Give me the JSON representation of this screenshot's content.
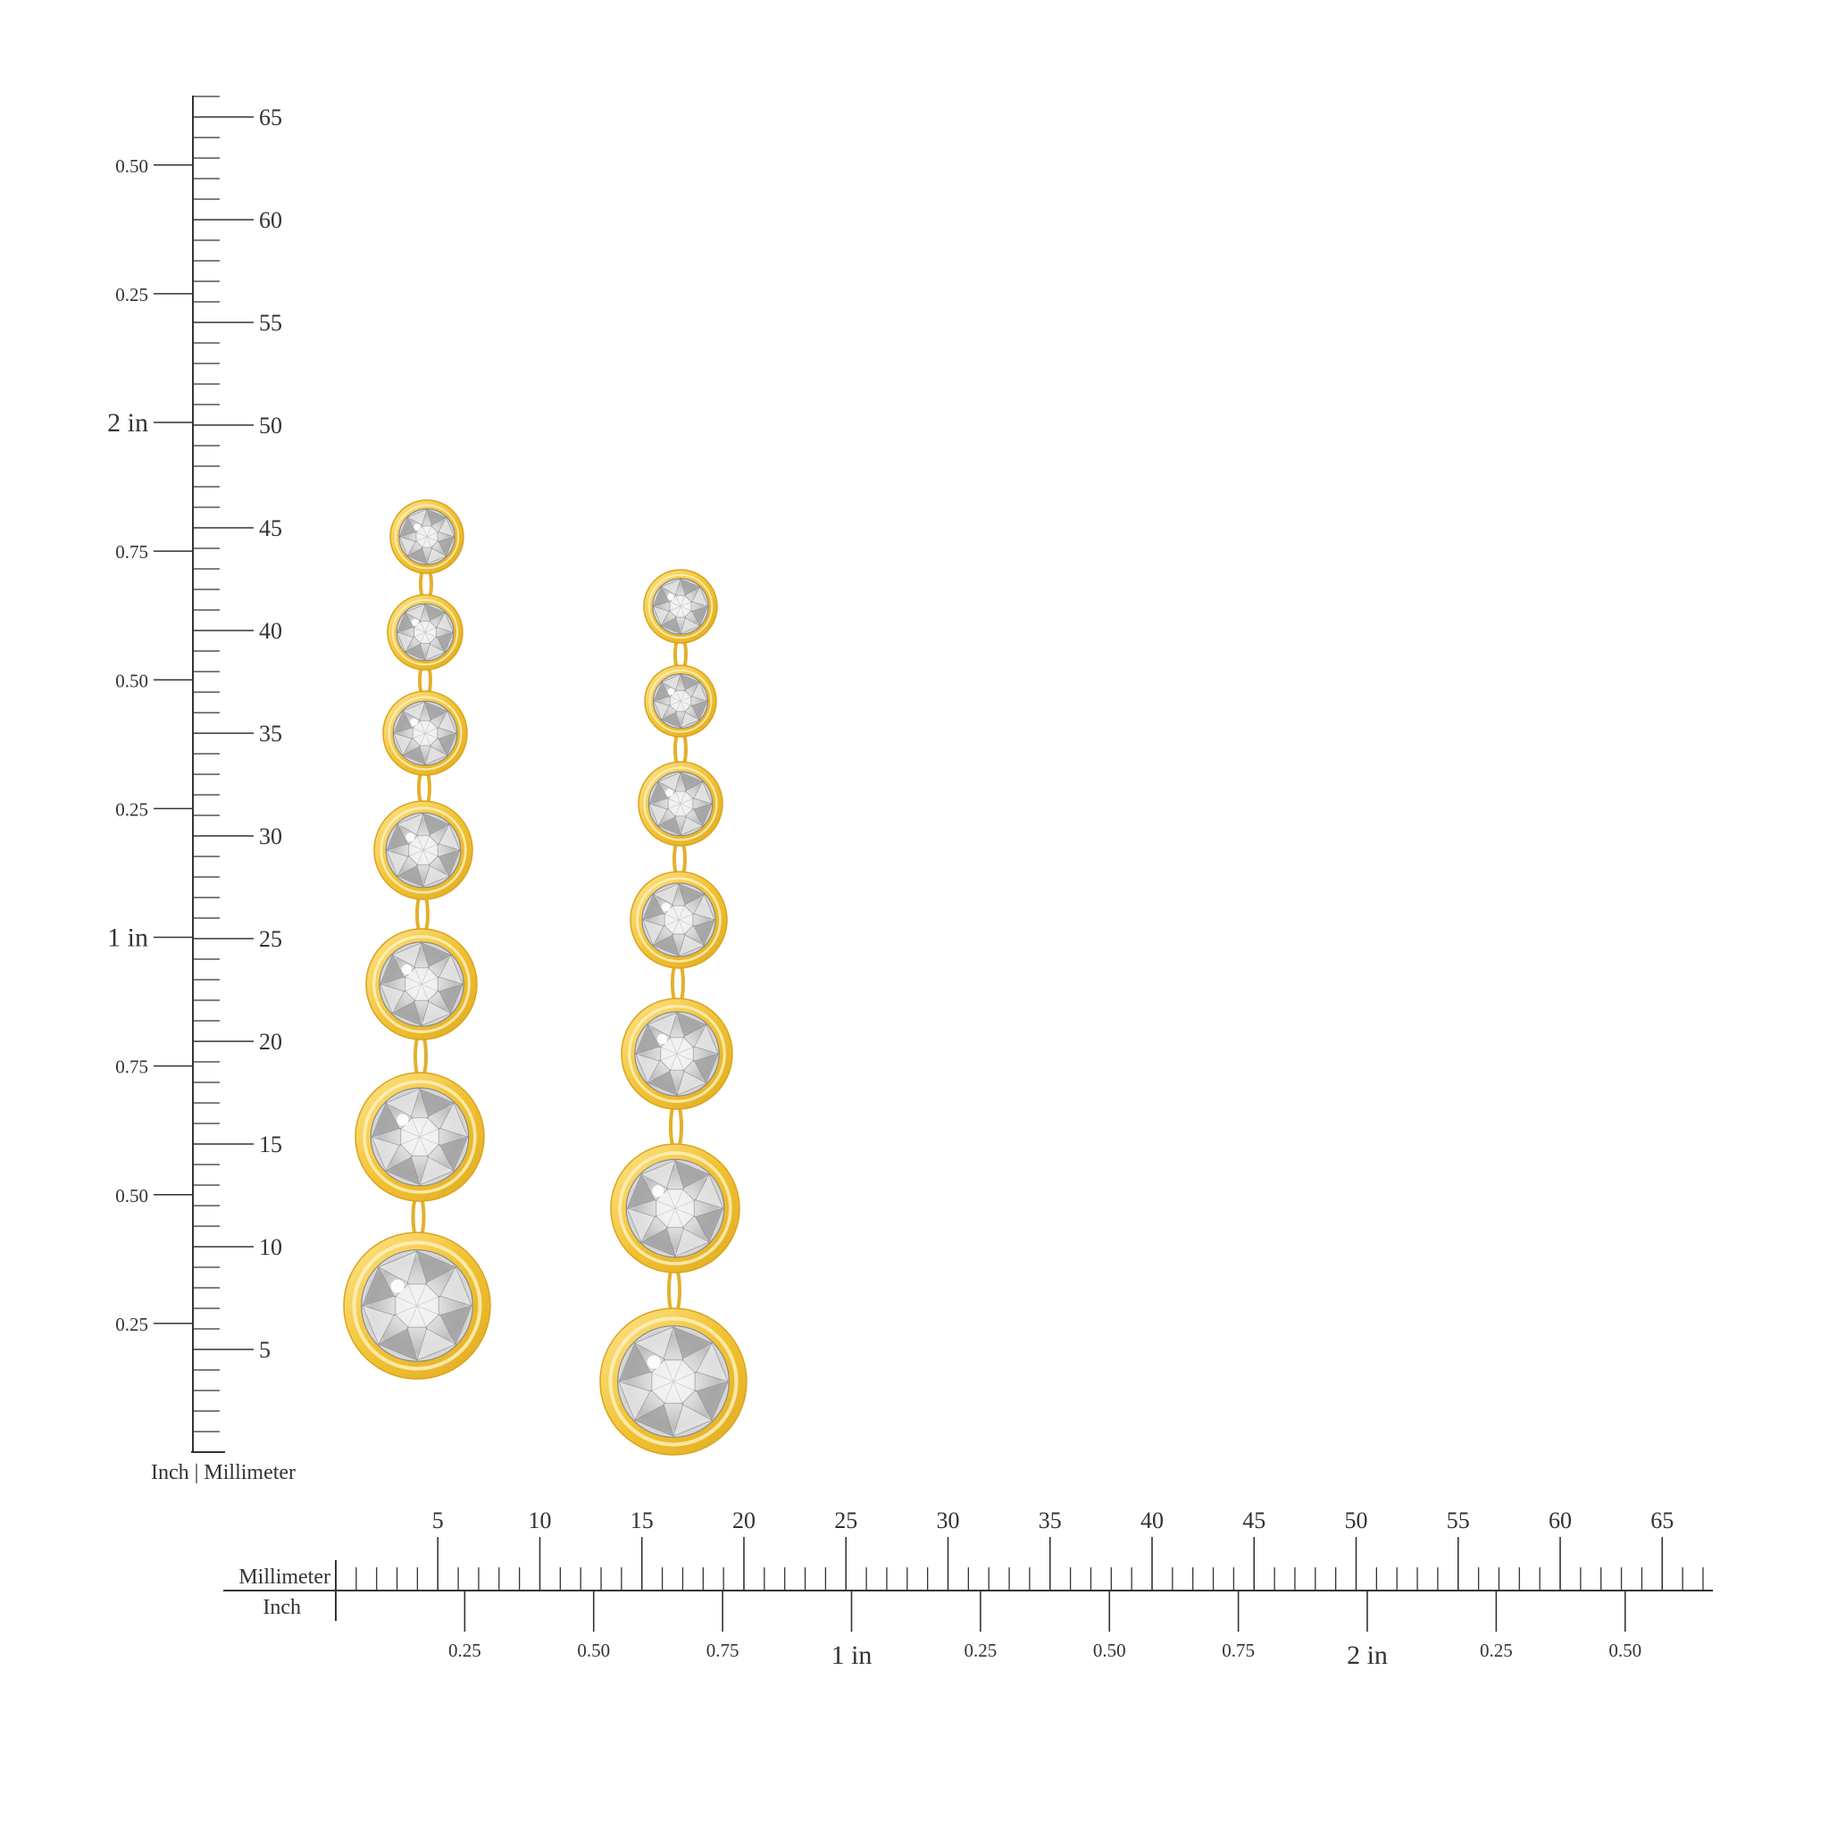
{
  "colors": {
    "ink": "#333333",
    "gold_light": "#fbe28a",
    "gold": "#f2c233",
    "gold_dark": "#d9a41d",
    "stone_light": "#ffffff",
    "stone_mid": "#c8c8c8",
    "stone_dark": "#6f6f6f"
  },
  "vertical_ruler": {
    "inch_labels": [
      "0.25",
      "0.50",
      "0.75",
      "1 in",
      "0.25",
      "0.50",
      "0.75",
      "2 in",
      "0.25",
      "0.50"
    ],
    "mm_labels": [
      "5",
      "10",
      "15",
      "20",
      "25",
      "30",
      "35",
      "40",
      "45",
      "50",
      "55",
      "60",
      "65"
    ],
    "units_caption": "Inch | Millimeter"
  },
  "horizontal_ruler": {
    "mm_labels": [
      "5",
      "10",
      "15",
      "20",
      "25",
      "30",
      "35",
      "40",
      "45",
      "50",
      "55",
      "60",
      "65"
    ],
    "inch_labels": [
      "0.25",
      "0.50",
      "0.75",
      "1 in",
      "0.25",
      "0.50",
      "0.75",
      "2 in",
      "0.25",
      "0.50"
    ],
    "mm_caption": "Millimeter",
    "inch_caption": "Inch"
  },
  "earrings": [
    {
      "name": "left-earring",
      "stone_count": 7
    },
    {
      "name": "right-earring",
      "stone_count": 7
    }
  ]
}
